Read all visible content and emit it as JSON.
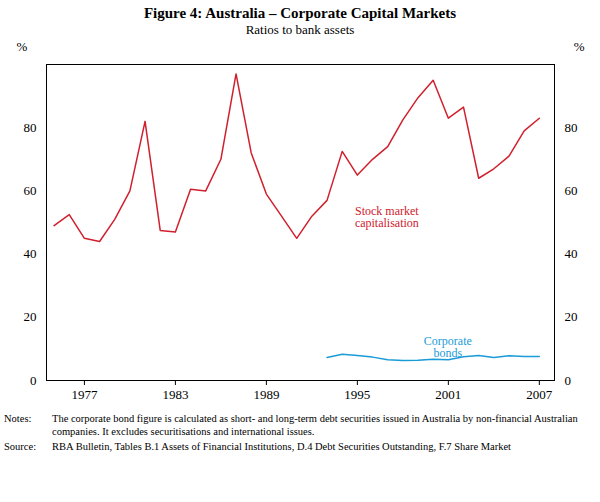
{
  "chart_data": {
    "type": "line",
    "title": "Figure 4: Australia – Corporate Capital Markets",
    "subtitle": "Ratios to bank assets",
    "y_label": "%",
    "x": [
      1975,
      1976,
      1977,
      1978,
      1979,
      1980,
      1981,
      1982,
      1983,
      1984,
      1985,
      1986,
      1987,
      1988,
      1989,
      1990,
      1991,
      1992,
      1993,
      1994,
      1995,
      1996,
      1997,
      1998,
      1999,
      2000,
      2001,
      2002,
      2003,
      2004,
      2005,
      2006,
      2007
    ],
    "series": [
      {
        "name": "Stock market capitalisation",
        "color": "#d0202e",
        "values": [
          49,
          52.5,
          45,
          44,
          51,
          60,
          82,
          47.5,
          47,
          60.5,
          60,
          70,
          97,
          72,
          59,
          52,
          45,
          52,
          57,
          72.5,
          65,
          70,
          74,
          82.5,
          89.5,
          95,
          83,
          86.5,
          64,
          67,
          71,
          79,
          83
        ]
      },
      {
        "name": "Corporate bonds",
        "color": "#1a9bd7",
        "values": [
          null,
          null,
          null,
          null,
          null,
          null,
          null,
          null,
          null,
          null,
          null,
          null,
          null,
          null,
          null,
          null,
          null,
          null,
          7.3,
          8.3,
          7.9,
          7.4,
          6.6,
          6.3,
          6.4,
          6.7,
          6.6,
          7.5,
          7.9,
          7.3,
          7.8,
          7.6,
          7.6
        ]
      }
    ],
    "xlim": [
      1974.5,
      2008
    ],
    "xticks": [
      1977,
      1983,
      1989,
      1995,
      2001,
      2007
    ],
    "ylim": [
      0,
      100
    ],
    "yticks": [
      0,
      20,
      40,
      60,
      80
    ],
    "grid": false,
    "notes": {
      "label": "Notes:",
      "text": "The corporate bond figure is calculated as short- and long-term debt securities issued in Australia by non-financial Australian companies. It excludes securitisations and international issues."
    },
    "source": {
      "label": "Source:",
      "text": "RBA Bulletin, Tables B.1 Assets of Financial Institutions, D.4 Debt Securities Outstanding, F.7 Share Market"
    }
  }
}
